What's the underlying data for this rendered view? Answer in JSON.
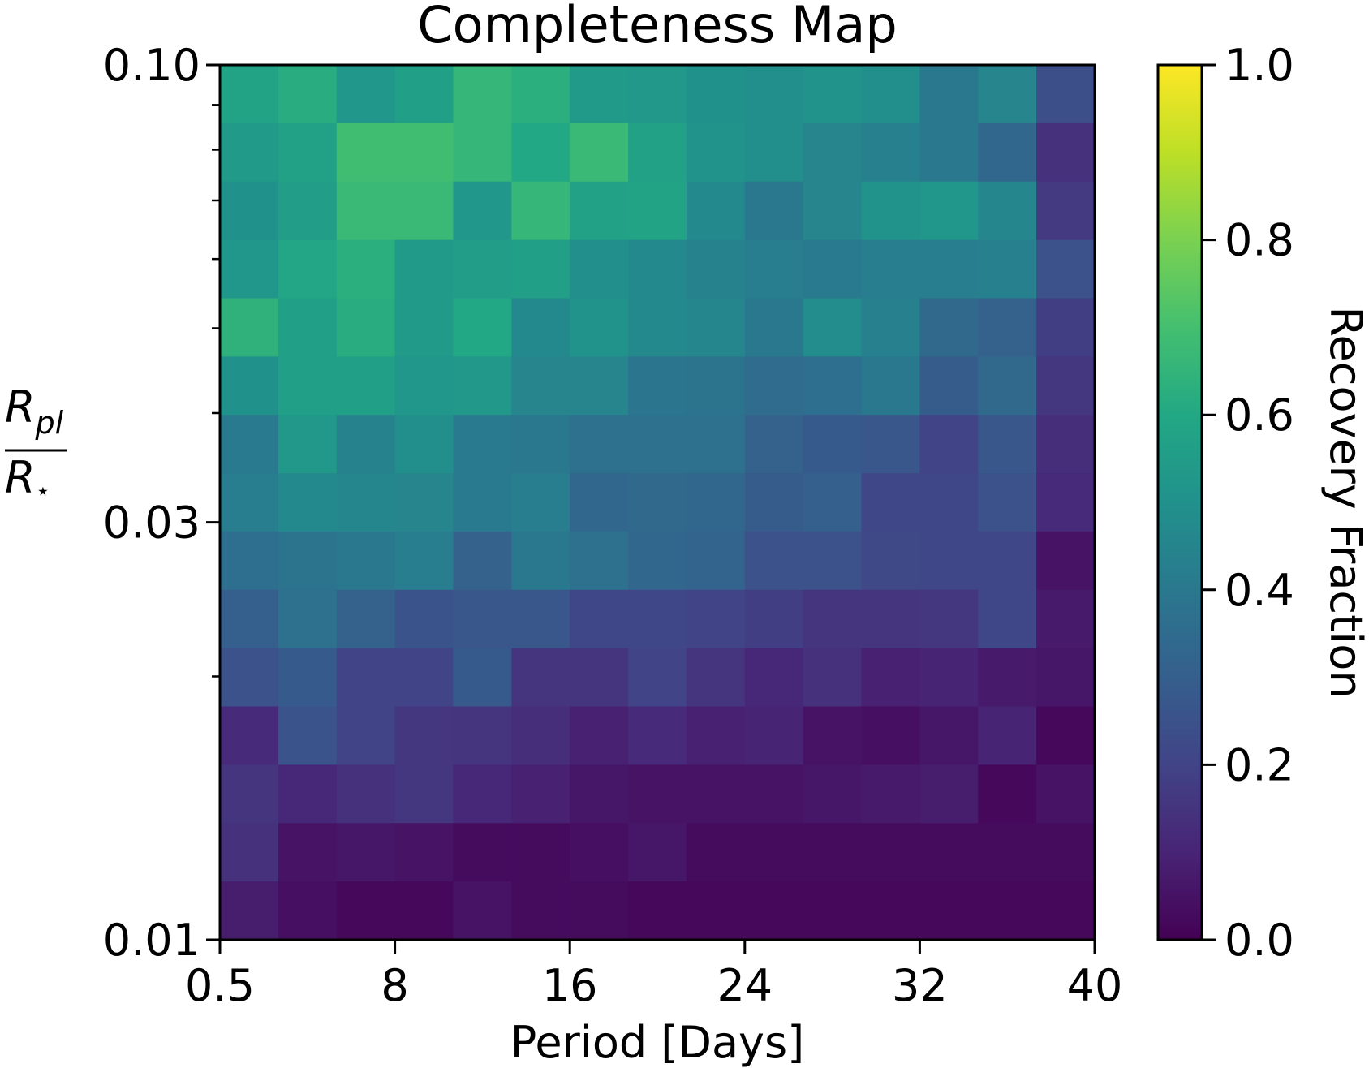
{
  "chart_data": {
    "type": "heatmap",
    "title": "Completeness Map",
    "xlabel": "Period [Days]",
    "ylabel": {
      "numerator": "R",
      "numerator_sub": "pl",
      "denominator": "R",
      "denominator_sub": "⋆"
    },
    "x_ticks": [
      "0.5",
      "8",
      "16",
      "24",
      "32",
      "40"
    ],
    "y_ticks": [
      "0.10",
      "0.03",
      "0.01"
    ],
    "y_scale": "log",
    "colorbar": {
      "label": "Recovery Fraction",
      "ticks": [
        "0.0",
        "0.2",
        "0.4",
        "0.6",
        "0.8",
        "1.0"
      ],
      "range": [
        0.0,
        1.0
      ],
      "colormap": "viridis"
    },
    "n_cols": 15,
    "n_rows": 15,
    "x_range": [
      0.5,
      40
    ],
    "y_range": [
      0.01,
      0.1
    ],
    "values_top_to_bottom": [
      [
        0.58,
        0.62,
        0.52,
        0.56,
        0.66,
        0.63,
        0.54,
        0.53,
        0.5,
        0.49,
        0.51,
        0.49,
        0.4,
        0.45,
        0.24
      ],
      [
        0.54,
        0.57,
        0.69,
        0.69,
        0.66,
        0.6,
        0.67,
        0.57,
        0.51,
        0.49,
        0.45,
        0.43,
        0.4,
        0.33,
        0.14
      ],
      [
        0.5,
        0.55,
        0.67,
        0.67,
        0.52,
        0.66,
        0.57,
        0.58,
        0.47,
        0.4,
        0.45,
        0.51,
        0.52,
        0.46,
        0.17
      ],
      [
        0.52,
        0.59,
        0.63,
        0.54,
        0.55,
        0.56,
        0.49,
        0.47,
        0.44,
        0.42,
        0.41,
        0.42,
        0.42,
        0.43,
        0.25
      ],
      [
        0.64,
        0.56,
        0.62,
        0.54,
        0.6,
        0.47,
        0.51,
        0.47,
        0.46,
        0.4,
        0.48,
        0.43,
        0.34,
        0.31,
        0.18
      ],
      [
        0.5,
        0.56,
        0.56,
        0.52,
        0.53,
        0.45,
        0.45,
        0.39,
        0.38,
        0.35,
        0.36,
        0.4,
        0.29,
        0.34,
        0.16
      ],
      [
        0.41,
        0.53,
        0.44,
        0.49,
        0.41,
        0.4,
        0.37,
        0.37,
        0.37,
        0.31,
        0.28,
        0.27,
        0.2,
        0.27,
        0.13
      ],
      [
        0.42,
        0.47,
        0.46,
        0.45,
        0.41,
        0.42,
        0.33,
        0.34,
        0.33,
        0.29,
        0.3,
        0.21,
        0.21,
        0.25,
        0.12
      ],
      [
        0.36,
        0.38,
        0.4,
        0.42,
        0.31,
        0.4,
        0.37,
        0.33,
        0.32,
        0.25,
        0.25,
        0.22,
        0.21,
        0.21,
        0.05
      ],
      [
        0.3,
        0.37,
        0.31,
        0.26,
        0.27,
        0.27,
        0.21,
        0.21,
        0.2,
        0.18,
        0.15,
        0.15,
        0.16,
        0.21,
        0.07
      ],
      [
        0.25,
        0.28,
        0.2,
        0.2,
        0.28,
        0.15,
        0.15,
        0.2,
        0.15,
        0.11,
        0.14,
        0.09,
        0.1,
        0.07,
        0.06
      ],
      [
        0.12,
        0.26,
        0.2,
        0.16,
        0.15,
        0.13,
        0.09,
        0.12,
        0.09,
        0.1,
        0.05,
        0.04,
        0.06,
        0.1,
        0.02
      ],
      [
        0.15,
        0.11,
        0.14,
        0.16,
        0.11,
        0.09,
        0.06,
        0.05,
        0.05,
        0.05,
        0.06,
        0.07,
        0.08,
        0.02,
        0.05
      ],
      [
        0.14,
        0.05,
        0.06,
        0.05,
        0.03,
        0.03,
        0.04,
        0.06,
        0.03,
        0.03,
        0.03,
        0.03,
        0.03,
        0.03,
        0.03
      ],
      [
        0.08,
        0.04,
        0.02,
        0.02,
        0.05,
        0.03,
        0.03,
        0.02,
        0.02,
        0.02,
        0.02,
        0.02,
        0.02,
        0.02,
        0.02
      ]
    ]
  }
}
